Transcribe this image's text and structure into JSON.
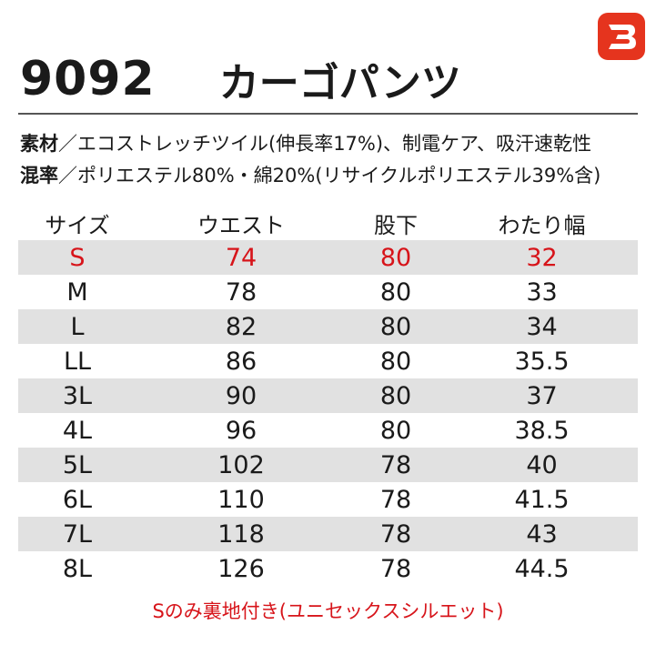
{
  "product": {
    "model": "9092",
    "name": "カーゴパンツ"
  },
  "brand": {
    "logo_icon": "burtle-b-logo-icon",
    "color": "#e5341e"
  },
  "specs": {
    "material_label": "素材",
    "material_value": "／エコストレッチツイル(伸長率17%)、制電ケア、吸汗速乾性",
    "blend_label": "混率",
    "blend_value": "／ポリエステル80%・綿20%(リサイクルポリエステル39%含)"
  },
  "table": {
    "headers": [
      "サイズ",
      "ウエスト",
      "股下",
      "わたり幅"
    ],
    "rows": [
      [
        "S",
        "74",
        "80",
        "32"
      ],
      [
        "M",
        "78",
        "80",
        "33"
      ],
      [
        "L",
        "82",
        "80",
        "34"
      ],
      [
        "LL",
        "86",
        "80",
        "35.5"
      ],
      [
        "3L",
        "90",
        "80",
        "37"
      ],
      [
        "4L",
        "96",
        "80",
        "38.5"
      ],
      [
        "5L",
        "102",
        "78",
        "40"
      ],
      [
        "6L",
        "110",
        "78",
        "41.5"
      ],
      [
        "7L",
        "118",
        "78",
        "43"
      ],
      [
        "8L",
        "126",
        "78",
        "44.5"
      ]
    ],
    "highlight_color": "#d7141a",
    "stripe_color": "#e1e1e1"
  },
  "note": "Sのみ裏地付き(ユニセックスシルエット)"
}
